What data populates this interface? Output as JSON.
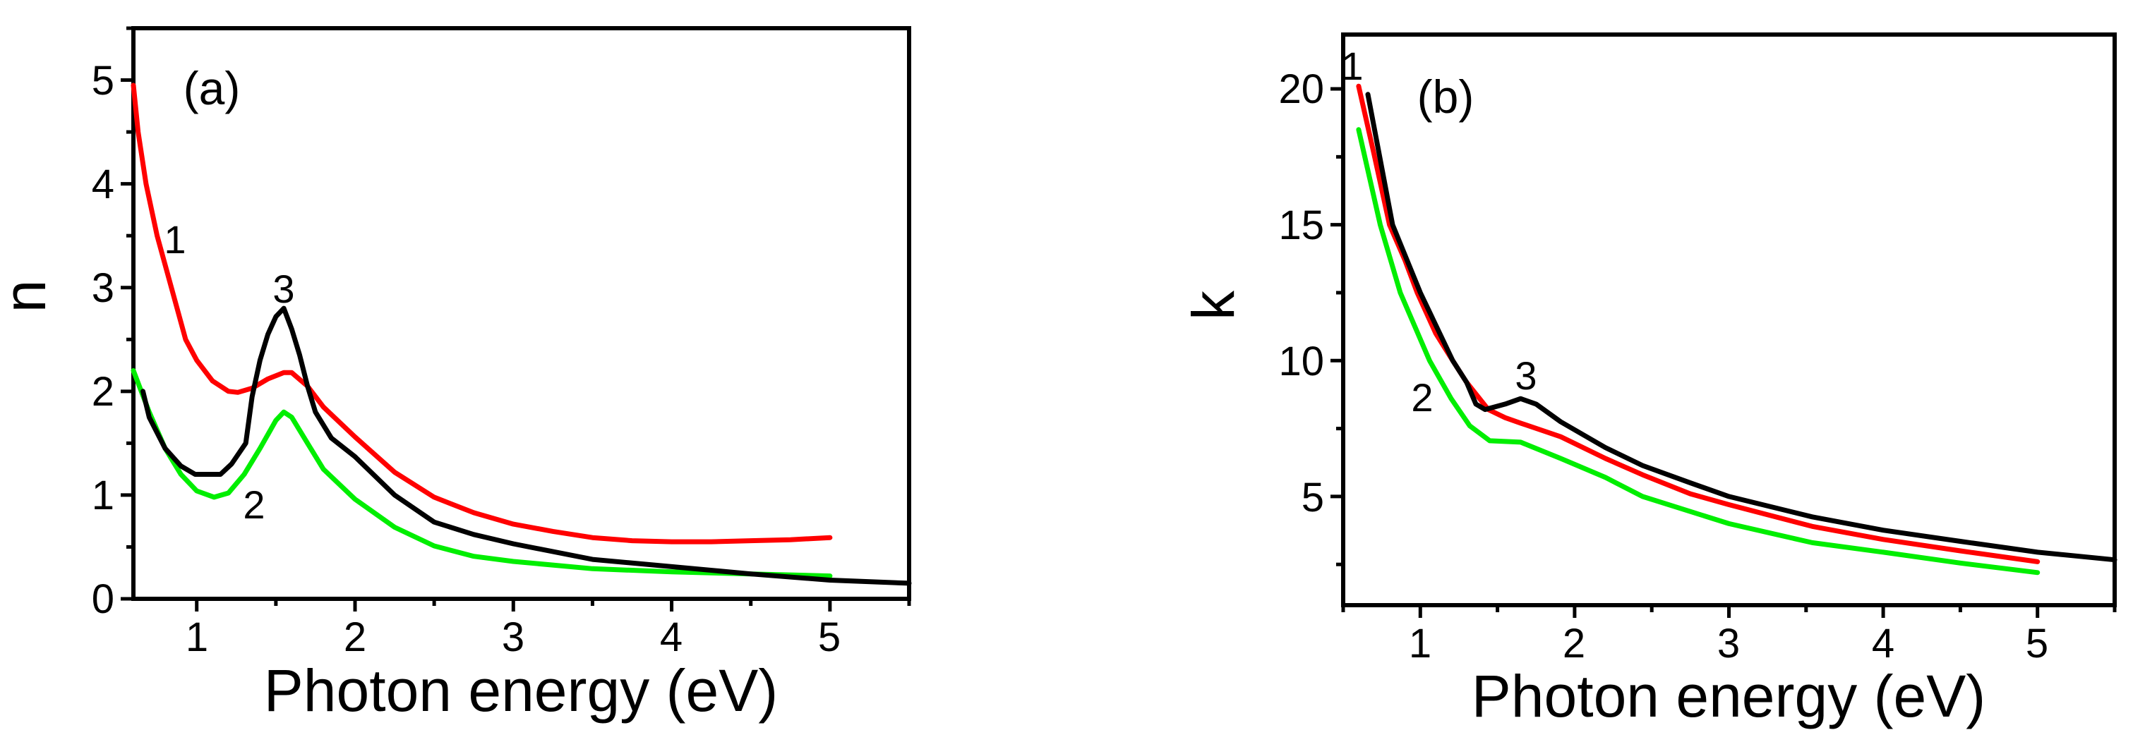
{
  "figure": {
    "panels": [
      {
        "id": "a",
        "panel_label": "(a)",
        "ylabel": "n",
        "xlabel": "Photon energy (eV)",
        "x_ticks": [
          "1",
          "2",
          "3",
          "4",
          "5"
        ],
        "y_ticks": [
          "0",
          "1",
          "2",
          "3",
          "4",
          "5"
        ],
        "curve_labels": [
          "1",
          "2",
          "3"
        ]
      },
      {
        "id": "b",
        "panel_label": "(b)",
        "ylabel": "k",
        "xlabel": "Photon energy (eV)",
        "x_ticks": [
          "1",
          "2",
          "3",
          "4",
          "5"
        ],
        "y_ticks": [
          "5",
          "10",
          "15",
          "20"
        ],
        "curve_labels": [
          "1",
          "2",
          "3"
        ]
      }
    ],
    "colors": {
      "curve_1": "#ff0000",
      "curve_2": "#00ee00",
      "curve_3": "#000000"
    }
  },
  "chart_data": [
    {
      "type": "line",
      "title": "(a)",
      "xlabel": "Photon energy (eV)",
      "ylabel": "n",
      "xlim": [
        0.6,
        5.5
      ],
      "ylim": [
        0,
        5.5
      ],
      "x_ticks": [
        1,
        2,
        3,
        4,
        5
      ],
      "y_ticks": [
        0,
        1,
        2,
        3,
        4,
        5
      ],
      "x_minor_step": 0.5,
      "y_minor_step": 0.5,
      "grid": false,
      "legend": "inline curve labels 1, 2, 3",
      "series": [
        {
          "name": "1",
          "color": "#ff0000",
          "x": [
            0.6,
            0.63,
            0.68,
            0.75,
            0.84,
            0.93,
            1.0,
            1.1,
            1.2,
            1.26,
            1.35,
            1.45,
            1.55,
            1.6,
            1.7,
            1.8,
            2.0,
            2.25,
            2.5,
            2.75,
            3.0,
            3.25,
            3.5,
            3.75,
            4.0,
            4.25,
            4.5,
            4.75,
            5.0
          ],
          "values": [
            4.95,
            4.5,
            4.0,
            3.5,
            3.0,
            2.5,
            2.3,
            2.1,
            2.0,
            1.99,
            2.03,
            2.12,
            2.18,
            2.18,
            2.05,
            1.85,
            1.56,
            1.22,
            0.98,
            0.83,
            0.72,
            0.65,
            0.59,
            0.56,
            0.55,
            0.55,
            0.56,
            0.57,
            0.59
          ]
        },
        {
          "name": "2",
          "color": "#00ee00",
          "x": [
            0.6,
            0.7,
            0.8,
            0.9,
            1.0,
            1.11,
            1.2,
            1.3,
            1.4,
            1.5,
            1.55,
            1.6,
            1.7,
            1.8,
            2.0,
            2.25,
            2.5,
            2.75,
            3.0,
            3.5,
            4.0,
            4.5,
            5.0
          ],
          "values": [
            2.2,
            1.8,
            1.45,
            1.2,
            1.04,
            0.98,
            1.02,
            1.2,
            1.45,
            1.72,
            1.8,
            1.75,
            1.5,
            1.25,
            0.96,
            0.69,
            0.51,
            0.41,
            0.36,
            0.29,
            0.26,
            0.24,
            0.22
          ]
        },
        {
          "name": "3",
          "color": "#000000",
          "x": [
            0.66,
            0.7,
            0.8,
            0.9,
            0.99,
            1.15,
            1.22,
            1.31,
            1.35,
            1.4,
            1.45,
            1.5,
            1.55,
            1.6,
            1.65,
            1.7,
            1.75,
            1.85,
            2.0,
            2.25,
            2.5,
            2.75,
            3.0,
            3.5,
            4.0,
            4.5,
            5.0,
            5.5
          ],
          "values": [
            2.0,
            1.75,
            1.45,
            1.28,
            1.2,
            1.2,
            1.3,
            1.5,
            1.95,
            2.3,
            2.55,
            2.72,
            2.8,
            2.6,
            2.35,
            2.05,
            1.8,
            1.55,
            1.37,
            1.0,
            0.74,
            0.62,
            0.53,
            0.38,
            0.31,
            0.24,
            0.18,
            0.15
          ]
        }
      ],
      "annotations": [
        {
          "text": "(a)",
          "x": 1.1,
          "y": 4.9
        },
        {
          "text": "1",
          "x": 0.87,
          "y": 3.4
        },
        {
          "text": "2",
          "x": 1.35,
          "y": 0.9
        },
        {
          "text": "3",
          "x": 1.55,
          "y": 3.0
        }
      ]
    },
    {
      "type": "line",
      "title": "(b)",
      "xlabel": "Photon energy (eV)",
      "ylabel": "k",
      "xlim": [
        0.5,
        5.5
      ],
      "ylim": [
        1,
        22
      ],
      "x_ticks": [
        1,
        2,
        3,
        4,
        5
      ],
      "y_ticks": [
        5,
        10,
        15,
        20
      ],
      "x_minor_step": 0.5,
      "y_minor_step": 2.5,
      "grid": false,
      "legend": "inline curve labels 1, 2, 3",
      "series": [
        {
          "name": "1",
          "color": "#ff0000",
          "x": [
            0.6,
            0.7,
            0.8,
            0.9,
            0.98,
            1.1,
            1.21,
            1.3,
            1.44,
            1.55,
            1.65,
            1.91,
            2.2,
            2.44,
            2.75,
            3.0,
            3.54,
            4.0,
            4.5,
            5.0
          ],
          "values": [
            20.1,
            17.6,
            15.0,
            13.7,
            12.5,
            11.0,
            10.0,
            9.2,
            8.2,
            7.9,
            7.7,
            7.2,
            6.4,
            5.8,
            5.1,
            4.7,
            3.9,
            3.42,
            3.0,
            2.6
          ]
        },
        {
          "name": "2",
          "color": "#00ee00",
          "x": [
            0.6,
            0.74,
            0.87,
            1.06,
            1.2,
            1.32,
            1.45,
            1.65,
            1.91,
            2.2,
            2.44,
            3.0,
            3.54,
            4.0,
            4.5,
            5.0
          ],
          "values": [
            18.5,
            15.0,
            12.5,
            10.0,
            8.6,
            7.6,
            7.05,
            7.0,
            6.4,
            5.7,
            5.0,
            4.0,
            3.3,
            2.95,
            2.55,
            2.2
          ]
        },
        {
          "name": "3",
          "color": "#000000",
          "x": [
            0.66,
            0.82,
            1.0,
            1.21,
            1.3,
            1.36,
            1.42,
            1.55,
            1.65,
            1.75,
            1.91,
            2.2,
            2.44,
            2.75,
            3.0,
            3.54,
            4.0,
            4.5,
            5.0,
            5.5
          ],
          "values": [
            19.8,
            15.0,
            12.5,
            10.0,
            9.2,
            8.4,
            8.2,
            8.4,
            8.6,
            8.4,
            7.75,
            6.8,
            6.14,
            5.5,
            5.0,
            4.25,
            3.76,
            3.35,
            2.95,
            2.67
          ]
        }
      ],
      "annotations": [
        {
          "text": "(b)",
          "x": 1.2,
          "y": 19.5
        },
        {
          "text": "1",
          "x": 0.56,
          "y": 20.7
        },
        {
          "text": "2",
          "x": 1.0,
          "y": 8.1
        },
        {
          "text": "3",
          "x": 1.7,
          "y": 9.0
        }
      ]
    }
  ]
}
